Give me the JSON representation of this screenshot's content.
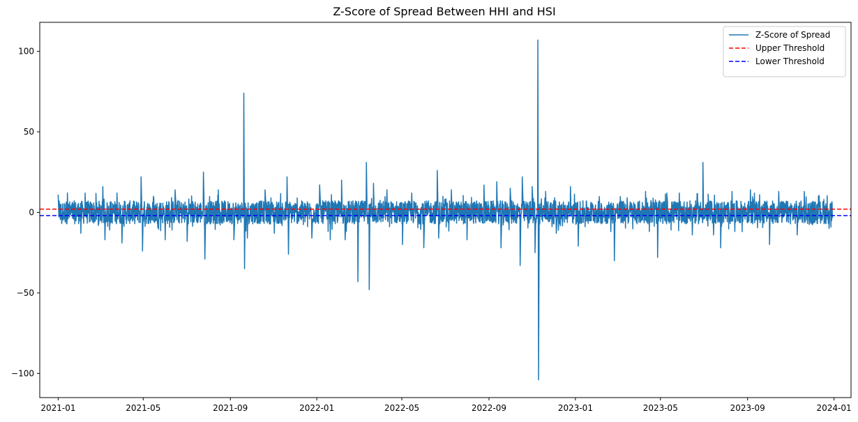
{
  "chart_data": {
    "type": "line",
    "title": "Z-Score of Spread Between HHI and HSI",
    "xlabel": "",
    "ylabel": "",
    "x_domain": [
      "2020-12-06",
      "2024-01-25"
    ],
    "ylim": [
      -115,
      118
    ],
    "x_ticks": [
      "2021-01",
      "2021-05",
      "2021-09",
      "2022-01",
      "2022-05",
      "2022-09",
      "2023-01",
      "2023-05",
      "2023-09",
      "2024-01"
    ],
    "y_ticks": [
      -100,
      -50,
      0,
      50,
      100
    ],
    "grid": false,
    "legend_position": "top-right",
    "series": [
      {
        "name": "Z-Score of Spread",
        "color": "#1f77b4",
        "style": "solid",
        "typical_range": [
          -8,
          8
        ],
        "range_start": "2021-01-01",
        "range_end": "2023-12-29",
        "peaks": [
          {
            "x": "2021-01-01",
            "y": 11
          },
          {
            "x": "2021-01-06",
            "y": -7
          },
          {
            "x": "2021-01-14",
            "y": 12
          },
          {
            "x": "2021-02-02",
            "y": -13
          },
          {
            "x": "2021-02-08",
            "y": 12
          },
          {
            "x": "2021-03-05",
            "y": 16
          },
          {
            "x": "2021-03-08",
            "y": -17
          },
          {
            "x": "2021-03-25",
            "y": 12
          },
          {
            "x": "2021-04-01",
            "y": -19
          },
          {
            "x": "2021-04-28",
            "y": 22
          },
          {
            "x": "2021-04-30",
            "y": -24
          },
          {
            "x": "2021-06-01",
            "y": -17
          },
          {
            "x": "2021-06-15",
            "y": 14
          },
          {
            "x": "2021-07-02",
            "y": -18
          },
          {
            "x": "2021-07-25",
            "y": 25
          },
          {
            "x": "2021-07-27",
            "y": -29
          },
          {
            "x": "2021-08-15",
            "y": 14
          },
          {
            "x": "2021-09-06",
            "y": -17
          },
          {
            "x": "2021-09-20",
            "y": 74
          },
          {
            "x": "2021-09-21",
            "y": -35
          },
          {
            "x": "2021-09-25",
            "y": -16
          },
          {
            "x": "2021-10-20",
            "y": 14
          },
          {
            "x": "2021-11-02",
            "y": -13
          },
          {
            "x": "2021-11-20",
            "y": 22
          },
          {
            "x": "2021-11-22",
            "y": -26
          },
          {
            "x": "2021-12-25",
            "y": -16
          },
          {
            "x": "2022-01-05",
            "y": 17
          },
          {
            "x": "2022-01-20",
            "y": -17
          },
          {
            "x": "2022-02-05",
            "y": 20
          },
          {
            "x": "2022-02-10",
            "y": -17
          },
          {
            "x": "2022-02-28",
            "y": -43
          },
          {
            "x": "2022-03-12",
            "y": 31
          },
          {
            "x": "2022-03-16",
            "y": -48
          },
          {
            "x": "2022-03-22",
            "y": 18
          },
          {
            "x": "2022-04-10",
            "y": 14
          },
          {
            "x": "2022-05-02",
            "y": -20
          },
          {
            "x": "2022-05-15",
            "y": 12
          },
          {
            "x": "2022-06-01",
            "y": -22
          },
          {
            "x": "2022-06-20",
            "y": 26
          },
          {
            "x": "2022-06-22",
            "y": -16
          },
          {
            "x": "2022-07-10",
            "y": 14
          },
          {
            "x": "2022-08-01",
            "y": -17
          },
          {
            "x": "2022-08-25",
            "y": 17
          },
          {
            "x": "2022-09-12",
            "y": 19
          },
          {
            "x": "2022-09-18",
            "y": -22
          },
          {
            "x": "2022-10-01",
            "y": 15
          },
          {
            "x": "2022-10-15",
            "y": -33
          },
          {
            "x": "2022-10-18",
            "y": 22
          },
          {
            "x": "2022-11-01",
            "y": 16
          },
          {
            "x": "2022-11-05",
            "y": -25
          },
          {
            "x": "2022-11-09",
            "y": 107
          },
          {
            "x": "2022-11-10",
            "y": -104
          },
          {
            "x": "2022-11-20",
            "y": 13
          },
          {
            "x": "2022-12-05",
            "y": -13
          },
          {
            "x": "2022-12-25",
            "y": 16
          },
          {
            "x": "2023-01-05",
            "y": -21
          },
          {
            "x": "2023-02-25",
            "y": -30
          },
          {
            "x": "2023-03-15",
            "y": 9
          },
          {
            "x": "2023-04-10",
            "y": 13
          },
          {
            "x": "2023-04-27",
            "y": -28
          },
          {
            "x": "2023-05-10",
            "y": 12
          },
          {
            "x": "2023-06-15",
            "y": -14
          },
          {
            "x": "2023-06-30",
            "y": 31
          },
          {
            "x": "2023-07-15",
            "y": -14
          },
          {
            "x": "2023-07-25",
            "y": -22
          },
          {
            "x": "2023-08-10",
            "y": 13
          },
          {
            "x": "2023-09-05",
            "y": 14
          },
          {
            "x": "2023-10-02",
            "y": -20
          },
          {
            "x": "2023-10-15",
            "y": 13
          },
          {
            "x": "2023-11-10",
            "y": -14
          },
          {
            "x": "2023-11-20",
            "y": 13
          },
          {
            "x": "2023-12-10",
            "y": 10
          },
          {
            "x": "2023-12-25",
            "y": -10
          }
        ]
      },
      {
        "name": "Upper Threshold",
        "color": "#ff0000",
        "style": "dashed",
        "y": 2
      },
      {
        "name": "Lower Threshold",
        "color": "#0000ff",
        "style": "dashed",
        "y": -2
      }
    ]
  }
}
